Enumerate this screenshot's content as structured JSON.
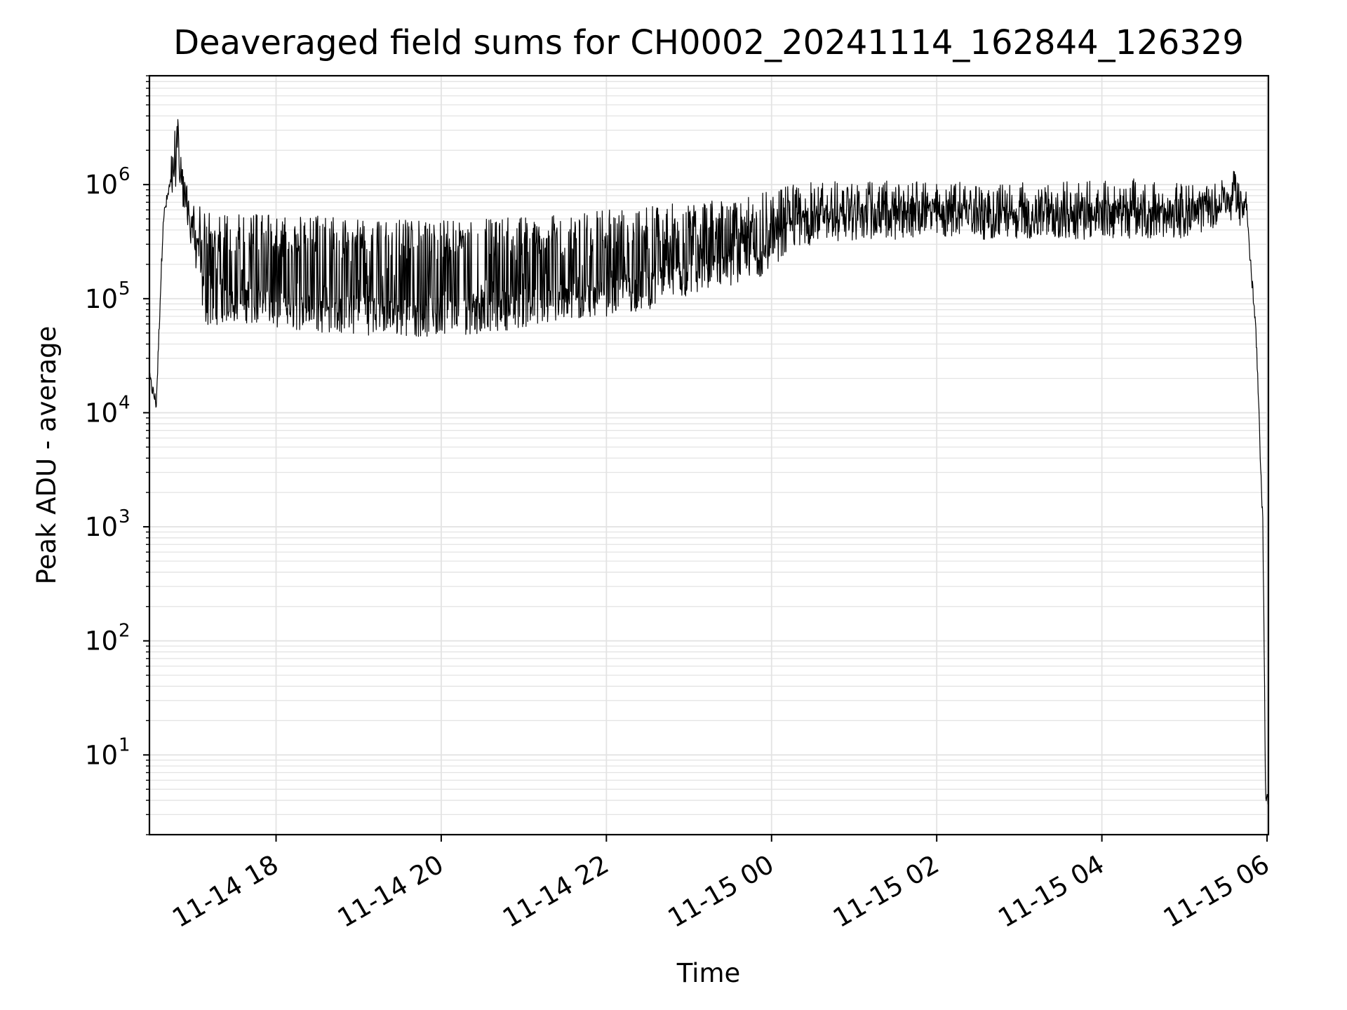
{
  "chart_data": {
    "type": "line",
    "title": "Deaveraged field sums for CH0002_20241114_162844_126329",
    "xlabel": "Time",
    "ylabel": "Peak ADU - average",
    "yscale": "log",
    "ylim": [
      2,
      9000000
    ],
    "xlim": [
      "2024-11-14 16:28",
      "2024-11-15 06:01"
    ],
    "x_ticks": [
      {
        "value": "2024-11-14 18:00",
        "label": "11-14 18"
      },
      {
        "value": "2024-11-14 20:00",
        "label": "11-14 20"
      },
      {
        "value": "2024-11-14 22:00",
        "label": "11-14 22"
      },
      {
        "value": "2024-11-15 00:00",
        "label": "11-15 00"
      },
      {
        "value": "2024-11-15 02:00",
        "label": "11-15 02"
      },
      {
        "value": "2024-11-15 04:00",
        "label": "11-15 04"
      },
      {
        "value": "2024-11-15 06:00",
        "label": "11-15 06"
      }
    ],
    "y_ticks": [
      {
        "value": 10,
        "base": "10",
        "exp": "1"
      },
      {
        "value": 100,
        "base": "10",
        "exp": "2"
      },
      {
        "value": 1000,
        "base": "10",
        "exp": "3"
      },
      {
        "value": 10000,
        "base": "10",
        "exp": "4"
      },
      {
        "value": 100000,
        "base": "10",
        "exp": "5"
      },
      {
        "value": 1000000,
        "base": "10",
        "exp": "6"
      }
    ],
    "grid": true,
    "line_color": "#000000",
    "grid_color": "#e3e3e3",
    "series": [
      {
        "x": [
          "2024-11-14 16:28",
          "2024-11-14 16:33",
          "2024-11-14 16:38",
          "2024-11-14 16:43",
          "2024-11-14 16:48",
          "2024-11-14 16:53",
          "2024-11-14 16:58",
          "2024-11-14 17:03",
          "2024-11-14 17:08",
          "2024-11-14 17:13",
          "2024-11-14 17:18",
          "2024-11-14 17:23",
          "2024-11-14 17:30",
          "2024-11-14 17:45",
          "2024-11-14 18:00",
          "2024-11-14 18:30",
          "2024-11-14 19:00",
          "2024-11-14 19:30",
          "2024-11-14 20:00",
          "2024-11-14 20:30",
          "2024-11-14 21:00",
          "2024-11-14 21:30",
          "2024-11-14 22:00",
          "2024-11-14 22:30",
          "2024-11-14 23:00",
          "2024-11-14 23:30",
          "2024-11-14 23:55",
          "2024-11-15 00:15",
          "2024-11-15 00:30",
          "2024-11-15 01:00",
          "2024-11-15 01:30",
          "2024-11-15 02:00",
          "2024-11-15 02:30",
          "2024-11-15 03:00",
          "2024-11-15 03:30",
          "2024-11-15 04:00",
          "2024-11-15 04:30",
          "2024-11-15 05:00",
          "2024-11-15 05:20",
          "2024-11-15 05:35",
          "2024-11-15 05:45",
          "2024-11-15 05:52",
          "2024-11-15 05:57",
          "2024-11-15 05:59",
          "2024-11-15 06:00",
          "2024-11-15 06:01"
        ],
        "low": [
          20000,
          12000,
          500000,
          800000,
          1000000,
          600000,
          300000,
          150000,
          60000,
          55000,
          60000,
          60000,
          62000,
          60000,
          55000,
          50000,
          48000,
          47000,
          45000,
          50000,
          55000,
          60000,
          70000,
          80000,
          100000,
          130000,
          160000,
          250000,
          300000,
          320000,
          330000,
          340000,
          330000,
          330000,
          330000,
          330000,
          340000,
          340000,
          400000,
          600000,
          500000,
          50000,
          1000,
          4,
          4,
          4
        ],
        "high": [
          20000,
          12000,
          500000,
          1000000,
          4800000,
          1500000,
          700000,
          700000,
          650000,
          600000,
          580000,
          560000,
          560000,
          550000,
          540000,
          530000,
          510000,
          490000,
          480000,
          500000,
          520000,
          550000,
          600000,
          650000,
          700000,
          750000,
          850000,
          1000000,
          1050000,
          1080000,
          1080000,
          1050000,
          1050000,
          1050000,
          1060000,
          1100000,
          1150000,
          1050000,
          1000000,
          1100000,
          800000,
          50000,
          1000,
          4,
          4,
          4
        ],
        "base": [
          20000,
          12000,
          500000,
          1000000,
          1000000,
          600000,
          300000,
          150000,
          70000,
          65000,
          65000,
          62000,
          62000,
          60000,
          55000,
          52000,
          50000,
          48000,
          46000,
          52000,
          60000,
          80000,
          100000,
          130000,
          160000,
          200000,
          250000,
          350000,
          400000,
          420000,
          420000,
          400000,
          400000,
          400000,
          420000,
          420000,
          430000,
          440000,
          500000,
          800000,
          600000,
          50000,
          1000,
          4,
          4,
          4
        ]
      }
    ]
  }
}
